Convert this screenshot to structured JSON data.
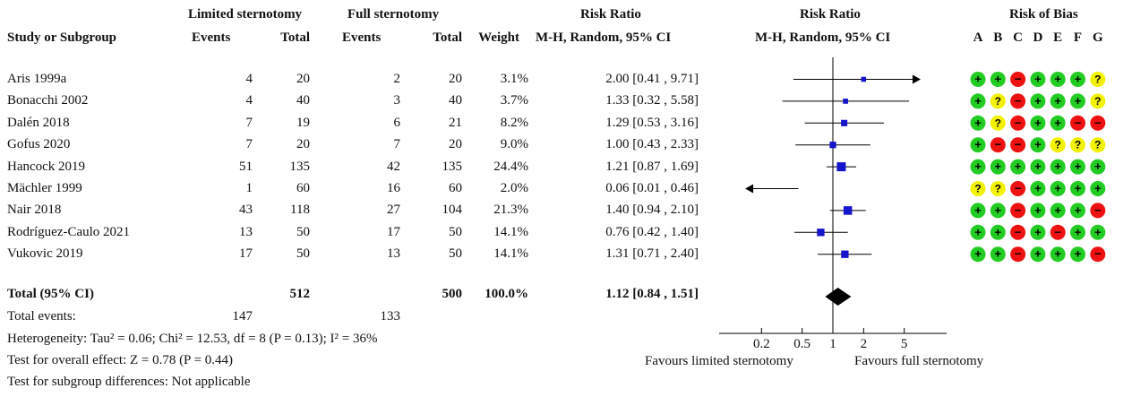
{
  "chart_data": {
    "type": "forest-plot",
    "headers": {
      "limited": "Limited sternotomy",
      "full": "Full sternotomy",
      "study": "Study or Subgroup",
      "events": "Events",
      "total": "Total",
      "weight": "Weight",
      "rr_title": "Risk Ratio",
      "rr_method": "M-H, Random, 95% CI",
      "plot_title": "Risk Ratio",
      "plot_method": "M-H, Random, 95% CI",
      "bias_title": "Risk of Bias",
      "bias_domains": [
        "A",
        "B",
        "C",
        "D",
        "E",
        "F",
        "G"
      ]
    },
    "studies": [
      {
        "name": "Aris 1999a",
        "le": "4",
        "lt": "20",
        "fe": "2",
        "ft": "20",
        "weight": "3.1%",
        "ci": "2.00 [0.41 , 9.71]",
        "rr": 2.0,
        "lo": 0.41,
        "hi": 9.71,
        "w": 3.1,
        "bias": [
          "+",
          "+",
          "-",
          "+",
          "+",
          "+",
          "?"
        ]
      },
      {
        "name": "Bonacchi 2002",
        "le": "4",
        "lt": "40",
        "fe": "3",
        "ft": "40",
        "weight": "3.7%",
        "ci": "1.33 [0.32 , 5.58]",
        "rr": 1.33,
        "lo": 0.32,
        "hi": 5.58,
        "w": 3.7,
        "bias": [
          "+",
          "?",
          "-",
          "+",
          "+",
          "+",
          "?"
        ]
      },
      {
        "name": "Dalén 2018",
        "le": "7",
        "lt": "19",
        "fe": "6",
        "ft": "21",
        "weight": "8.2%",
        "ci": "1.29 [0.53 , 3.16]",
        "rr": 1.29,
        "lo": 0.53,
        "hi": 3.16,
        "w": 8.2,
        "bias": [
          "+",
          "?",
          "-",
          "+",
          "+",
          "-",
          "-"
        ]
      },
      {
        "name": "Gofus 2020",
        "le": "7",
        "lt": "20",
        "fe": "7",
        "ft": "20",
        "weight": "9.0%",
        "ci": "1.00 [0.43 , 2.33]",
        "rr": 1.0,
        "lo": 0.43,
        "hi": 2.33,
        "w": 9.0,
        "bias": [
          "+",
          "-",
          "-",
          "+",
          "?",
          "?",
          "?"
        ]
      },
      {
        "name": "Hancock 2019",
        "le": "51",
        "lt": "135",
        "fe": "42",
        "ft": "135",
        "weight": "24.4%",
        "ci": "1.21 [0.87 , 1.69]",
        "rr": 1.21,
        "lo": 0.87,
        "hi": 1.69,
        "w": 24.4,
        "bias": [
          "+",
          "+",
          "+",
          "+",
          "+",
          "+",
          "+"
        ]
      },
      {
        "name": "Mächler 1999",
        "le": "1",
        "lt": "60",
        "fe": "16",
        "ft": "60",
        "weight": "2.0%",
        "ci": "0.06 [0.01 , 0.46]",
        "rr": 0.06,
        "lo": 0.01,
        "hi": 0.46,
        "w": 2.0,
        "bias": [
          "?",
          "?",
          "-",
          "+",
          "+",
          "+",
          "+"
        ]
      },
      {
        "name": "Nair 2018",
        "le": "43",
        "lt": "118",
        "fe": "27",
        "ft": "104",
        "weight": "21.3%",
        "ci": "1.40 [0.94 , 2.10]",
        "rr": 1.4,
        "lo": 0.94,
        "hi": 2.1,
        "w": 21.3,
        "bias": [
          "+",
          "+",
          "-",
          "+",
          "+",
          "+",
          "-"
        ]
      },
      {
        "name": "Rodríguez-Caulo 2021",
        "le": "13",
        "lt": "50",
        "fe": "17",
        "ft": "50",
        "weight": "14.1%",
        "ci": "0.76 [0.42 , 1.40]",
        "rr": 0.76,
        "lo": 0.42,
        "hi": 1.4,
        "w": 14.1,
        "bias": [
          "+",
          "+",
          "-",
          "+",
          "-",
          "+",
          "+"
        ]
      },
      {
        "name": "Vukovic 2019",
        "le": "17",
        "lt": "50",
        "fe": "13",
        "ft": "50",
        "weight": "14.1%",
        "ci": "1.31 [0.71 , 2.40]",
        "rr": 1.31,
        "lo": 0.71,
        "hi": 2.4,
        "w": 14.1,
        "bias": [
          "+",
          "+",
          "-",
          "+",
          "+",
          "+",
          "-"
        ]
      }
    ],
    "total": {
      "name": "Total (95% CI)",
      "lt": "512",
      "ft": "500",
      "weight": "100.0%",
      "ci": "1.12 [0.84 , 1.51]",
      "rr": 1.12,
      "lo": 0.84,
      "hi": 1.51
    },
    "total_events": {
      "label": "Total events:",
      "limited": "147",
      "full": "133"
    },
    "heterogeneity": "Heterogeneity: Tau² = 0.06; Chi² = 12.53, df = 8 (P = 0.13); I² = 36%",
    "overall_effect": "Test for overall effect: Z = 0.78 (P = 0.44)",
    "subgroup": "Test for subgroup differences: Not applicable",
    "axis": {
      "scale": "log",
      "range": [
        0.15,
        6.67
      ],
      "ticks": [
        0.2,
        0.5,
        1,
        2,
        5
      ],
      "tick_labels": [
        "0.2",
        "0.5",
        "1",
        "2",
        "5"
      ]
    },
    "favours_left": "Favours limited sternotomy",
    "favours_right": "Favours full sternotomy",
    "colors": {
      "low": "#22cc22",
      "unclear": "#f2f200",
      "high": "#ee1111",
      "marker": "#1515cc"
    }
  }
}
